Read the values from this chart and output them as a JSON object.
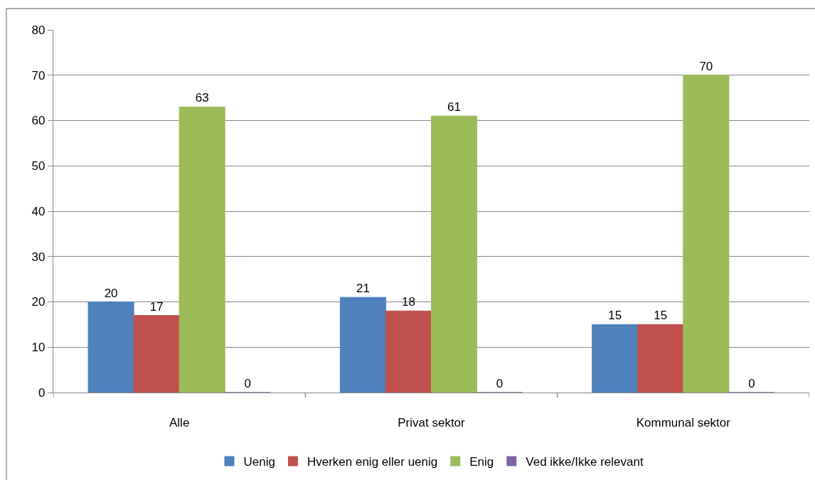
{
  "chart_data": {
    "type": "bar",
    "categories": [
      "Alle",
      "Privat sektor",
      "Kommunal sektor"
    ],
    "series": [
      {
        "name": "Uenig",
        "color": "#4f81bd",
        "values": [
          20,
          21,
          15
        ]
      },
      {
        "name": "Hverken enig eller uenig",
        "color": "#c0504d",
        "values": [
          17,
          18,
          15
        ]
      },
      {
        "name": "Enig",
        "color": "#9bbb59",
        "values": [
          63,
          61,
          70
        ]
      },
      {
        "name": "Ved ikke/Ikke relevant",
        "color": "#8064a2",
        "values": [
          0,
          0,
          0
        ]
      }
    ],
    "ylim": [
      0,
      80
    ],
    "yticks": [
      0,
      10,
      20,
      30,
      40,
      50,
      60,
      70,
      80
    ],
    "grid": "y",
    "legend": "bottom",
    "data_labels": true
  }
}
